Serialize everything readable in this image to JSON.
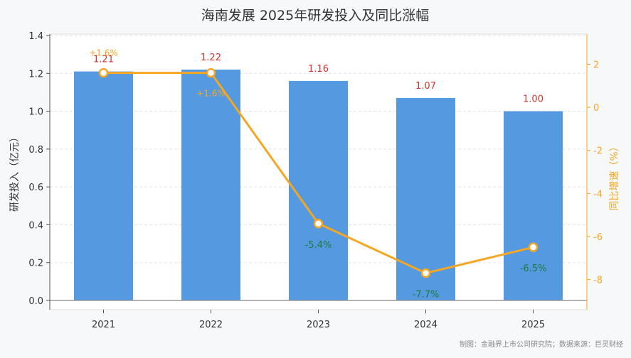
{
  "title": "海南发展 2025年研发投入及同比涨幅",
  "source": "制图：金融界上市公司研究院；数据来源：巨灵财经",
  "colors": {
    "bar": "#5599e0",
    "line": "#f5a623",
    "value_label": "#d0342c",
    "negative_label": "#1e7a3c"
  },
  "chart_data": {
    "type": "bar",
    "categories": [
      "2021",
      "2022",
      "2023",
      "2024",
      "2025"
    ],
    "series": [
      {
        "type": "bar",
        "axis": "left",
        "values": [
          1.21,
          1.22,
          1.16,
          1.07,
          1.0
        ]
      },
      {
        "type": "line",
        "axis": "right",
        "values": [
          1.6,
          1.6,
          -5.4,
          -7.7,
          -6.5
        ]
      }
    ],
    "bar_labels": [
      "1.21",
      "1.22",
      "1.16",
      "1.07",
      "1.00"
    ],
    "line_labels": [
      "+1.6%",
      "+1.6%",
      "-5.4%",
      "-7.7%",
      "-6.5%"
    ],
    "ylabel": "研发投入（亿元）",
    "ylabel_right": "同比增速（%）",
    "ylim": [
      0,
      1.4
    ],
    "yticks": [
      "0.0",
      "0.2",
      "0.4",
      "0.6",
      "0.8",
      "1.0",
      "1.2",
      "1.4"
    ],
    "ylim_right": [
      -9.4,
      3.4
    ],
    "yticks_right": [
      "-8",
      "-6",
      "-4",
      "-2",
      "0",
      "2"
    ],
    "grid": true
  }
}
